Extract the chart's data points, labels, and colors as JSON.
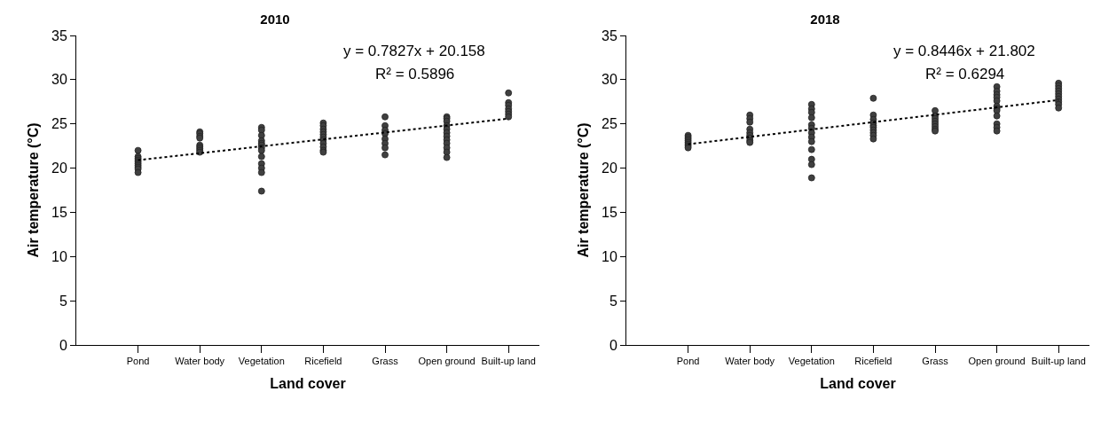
{
  "chart_data": [
    {
      "type": "scatter",
      "title": "2010",
      "xlabel": "Land cover",
      "ylabel": "Air temperature (°C)",
      "categories": [
        "Pond",
        "Water body",
        "Vegetation",
        "Ricefield",
        "Grass",
        "Open ground",
        "Built-up land"
      ],
      "ylim": [
        0,
        35
      ],
      "yticks": [
        0,
        5,
        10,
        15,
        20,
        25,
        30,
        35
      ],
      "grid": false,
      "annotations": [
        "y = 0.7827x + 20.158",
        "R² = 0.5896"
      ],
      "series": [
        {
          "type": "scatter",
          "marker": "circle",
          "color": "#404040",
          "x": [
            "Pond",
            "Pond",
            "Pond",
            "Pond",
            "Pond",
            "Pond",
            "Pond",
            "Pond",
            "Pond",
            "Pond",
            "Water body",
            "Water body",
            "Water body",
            "Water body",
            "Water body",
            "Water body",
            "Water body",
            "Water body",
            "Water body",
            "Vegetation",
            "Vegetation",
            "Vegetation",
            "Vegetation",
            "Vegetation",
            "Vegetation",
            "Vegetation",
            "Vegetation",
            "Vegetation",
            "Vegetation",
            "Vegetation",
            "Vegetation",
            "Vegetation",
            "Ricefield",
            "Ricefield",
            "Ricefield",
            "Ricefield",
            "Ricefield",
            "Ricefield",
            "Ricefield",
            "Ricefield",
            "Ricefield",
            "Ricefield",
            "Ricefield",
            "Grass",
            "Grass",
            "Grass",
            "Grass",
            "Grass",
            "Grass",
            "Grass",
            "Grass",
            "Open ground",
            "Open ground",
            "Open ground",
            "Open ground",
            "Open ground",
            "Open ground",
            "Open ground",
            "Open ground",
            "Open ground",
            "Open ground",
            "Open ground",
            "Open ground",
            "Built-up land",
            "Built-up land",
            "Built-up land",
            "Built-up land",
            "Built-up land",
            "Built-up land",
            "Built-up land"
          ],
          "values": [
            22.0,
            21.3,
            21.1,
            20.9,
            20.7,
            20.5,
            20.3,
            20.1,
            19.9,
            19.5,
            24.1,
            23.9,
            23.6,
            23.4,
            22.6,
            22.4,
            22.2,
            22.0,
            21.8,
            24.6,
            24.3,
            23.7,
            23.1,
            22.8,
            22.6,
            22.3,
            22.0,
            21.3,
            20.5,
            20.0,
            19.5,
            17.4,
            25.1,
            24.8,
            24.4,
            24.1,
            23.8,
            23.5,
            23.2,
            22.8,
            22.4,
            22.0,
            21.8,
            25.8,
            24.8,
            24.3,
            23.9,
            23.3,
            22.8,
            22.3,
            21.5,
            25.8,
            25.6,
            25.3,
            24.8,
            24.4,
            24.0,
            23.6,
            23.2,
            22.8,
            22.3,
            21.8,
            21.2,
            28.5,
            27.4,
            27.1,
            26.7,
            26.4,
            26.1,
            25.8
          ]
        },
        {
          "type": "line",
          "line_style": "dotted",
          "color": "#000000",
          "x": [
            "Pond",
            "Built-up land"
          ],
          "values": [
            20.9,
            25.6
          ]
        }
      ]
    },
    {
      "type": "scatter",
      "title": "2018",
      "xlabel": "Land cover",
      "ylabel": "Air temperature (°C)",
      "categories": [
        "Pond",
        "Water body",
        "Vegetation",
        "Ricefield",
        "Grass",
        "Open ground",
        "Built-up land"
      ],
      "ylim": [
        0,
        35
      ],
      "yticks": [
        0,
        5,
        10,
        15,
        20,
        25,
        30,
        35
      ],
      "grid": false,
      "annotations": [
        "y = 0.8446x + 21.802",
        "R² = 0.6294"
      ],
      "series": [
        {
          "type": "scatter",
          "marker": "circle",
          "color": "#404040",
          "x": [
            "Pond",
            "Pond",
            "Pond",
            "Pond",
            "Pond",
            "Pond",
            "Pond",
            "Pond",
            "Water body",
            "Water body",
            "Water body",
            "Water body",
            "Water body",
            "Water body",
            "Water body",
            "Water body",
            "Water body",
            "Vegetation",
            "Vegetation",
            "Vegetation",
            "Vegetation",
            "Vegetation",
            "Vegetation",
            "Vegetation",
            "Vegetation",
            "Vegetation",
            "Vegetation",
            "Vegetation",
            "Vegetation",
            "Vegetation",
            "Ricefield",
            "Ricefield",
            "Ricefield",
            "Ricefield",
            "Ricefield",
            "Ricefield",
            "Ricefield",
            "Ricefield",
            "Ricefield",
            "Ricefield",
            "Grass",
            "Grass",
            "Grass",
            "Grass",
            "Grass",
            "Grass",
            "Grass",
            "Grass",
            "Open ground",
            "Open ground",
            "Open ground",
            "Open ground",
            "Open ground",
            "Open ground",
            "Open ground",
            "Open ground",
            "Open ground",
            "Open ground",
            "Open ground",
            "Open ground",
            "Built-up land",
            "Built-up land",
            "Built-up land",
            "Built-up land",
            "Built-up land",
            "Built-up land",
            "Built-up land",
            "Built-up land",
            "Built-up land",
            "Built-up land"
          ],
          "values": [
            23.7,
            23.5,
            23.3,
            23.1,
            22.9,
            22.7,
            22.5,
            22.3,
            26.0,
            25.6,
            25.2,
            24.4,
            24.0,
            23.7,
            23.4,
            23.1,
            22.9,
            27.2,
            26.7,
            26.3,
            25.7,
            24.9,
            24.5,
            24.0,
            23.5,
            23.0,
            22.1,
            21.0,
            20.4,
            18.9,
            27.9,
            26.0,
            25.5,
            25.1,
            24.8,
            24.6,
            24.3,
            24.0,
            23.7,
            23.3,
            26.5,
            25.9,
            25.6,
            25.3,
            25.0,
            24.7,
            24.4,
            24.2,
            29.2,
            28.7,
            28.3,
            28.0,
            27.6,
            27.0,
            26.7,
            26.5,
            25.9,
            25.0,
            24.6,
            24.2,
            29.6,
            29.3,
            29.0,
            28.7,
            28.4,
            28.1,
            27.8,
            27.5,
            27.2,
            26.8
          ]
        },
        {
          "type": "line",
          "line_style": "dotted",
          "color": "#000000",
          "x": [
            "Pond",
            "Built-up land"
          ],
          "values": [
            22.7,
            27.7
          ]
        }
      ]
    }
  ]
}
